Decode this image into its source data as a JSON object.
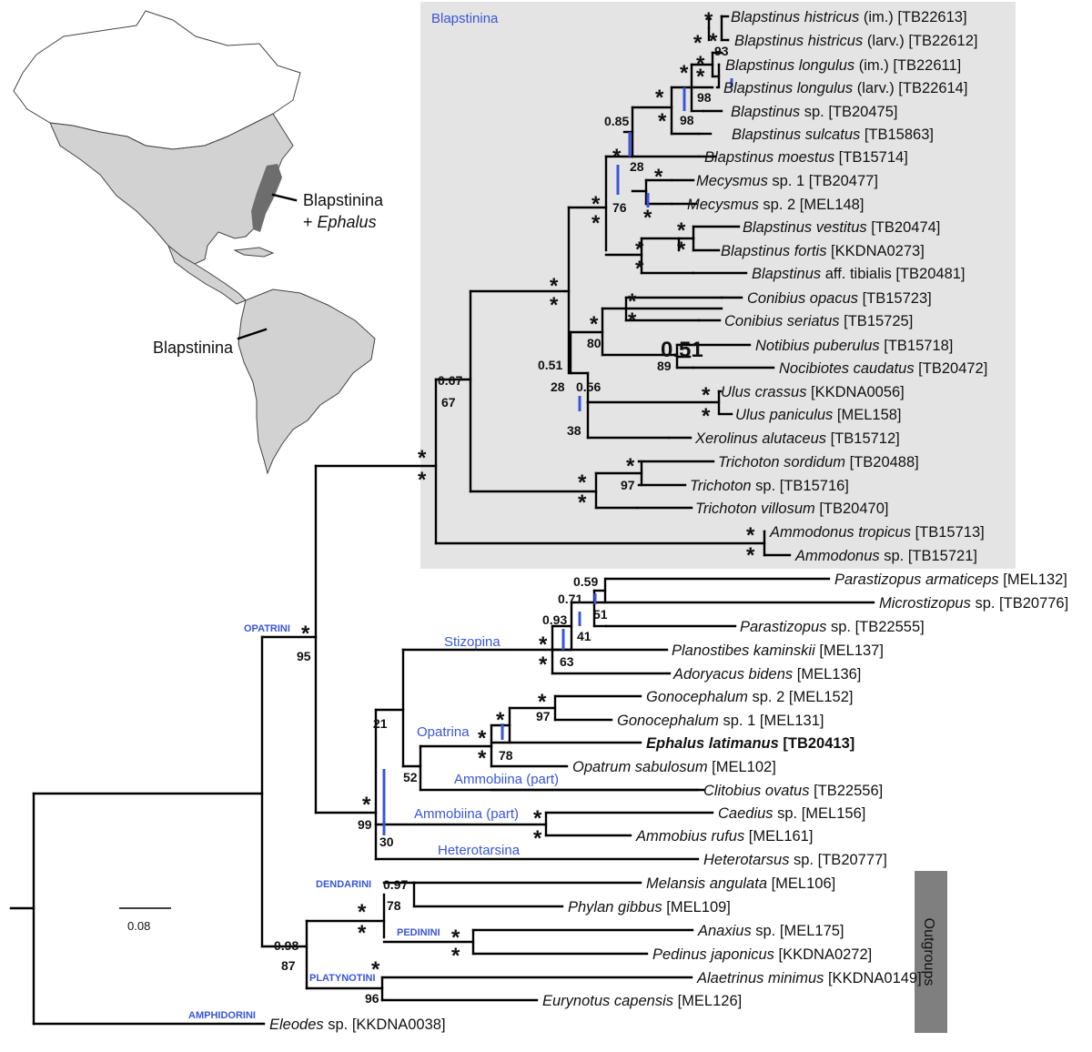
{
  "clade_box_label": "Blapstinina",
  "outgroup_label": "Outgroups",
  "scale_label": "0.08",
  "map_labels": {
    "east": "Blapstinina",
    "east_plus": "+",
    "east_genus": "Ephalus",
    "south": "Blapstinina"
  },
  "colors": {
    "blue": "#3a55d8",
    "box": "#e4e4e4",
    "outgroup_bar": "#7f7f7f",
    "map_land": "#d2d2d2",
    "map_dark": "#6d6d6d"
  },
  "tribes": {
    "opatrini": "OPATRINI",
    "dendarini": "DENDARINI",
    "pedinini": "PEDININI",
    "platynotini": "PLATYNOTINI",
    "amphidorini": "AMPHIDORINI"
  },
  "groups": {
    "stizopina": "Stizopina",
    "opatrina": "Opatrina",
    "ammobiina1": "Ammobiina (part)",
    "ammobiina2": "Ammobiina (part)",
    "heterotarsina": "Heterotarsina"
  },
  "taxa": [
    {
      "sp": "Blapstinus histricus",
      "rest": " (im.) [TB22613]"
    },
    {
      "sp": "Blapstinus histricus",
      "rest": " (larv.) [TB22612]"
    },
    {
      "sp": "Blapstinus longulus",
      "rest": " (im.) [TB22611]"
    },
    {
      "sp": "Blapstinus longulus",
      "rest": " (larv.) [TB22614]"
    },
    {
      "sp": "Blapstinus",
      "rest": " sp. [TB20475]"
    },
    {
      "sp": "Blapstinus sulcatus",
      "rest": " [TB15863]"
    },
    {
      "sp": "Blapstinus moestus",
      "rest": " [TB15714]"
    },
    {
      "sp": "Mecysmus",
      "rest": " sp. 1 [TB20477]"
    },
    {
      "sp": "Mecysmus",
      "rest": " sp. 2 [MEL148]"
    },
    {
      "sp": "Blapstinus vestitus",
      "rest": " [TB20474]"
    },
    {
      "sp": "Blapstinus fortis",
      "rest": " [KKDNA0273]"
    },
    {
      "sp": "Blapstinus",
      "rest": " aff. tibialis [TB20481]"
    },
    {
      "sp": "Conibius opacus",
      "rest": " [TB15723]"
    },
    {
      "sp": "Conibius seriatus",
      "rest": " [TB15725]"
    },
    {
      "sp": "Notibius puberulus",
      "rest": " [TB15718]"
    },
    {
      "sp": "Nocibiotes caudatus",
      "rest": " [TB20472]"
    },
    {
      "sp": "Ulus crassus",
      "rest": " [KKDNA0056]"
    },
    {
      "sp": "Ulus paniculus",
      "rest": " [MEL158]"
    },
    {
      "sp": "Xerolinus alutaceus",
      "rest": " [TB15712]"
    },
    {
      "sp": "Trichoton sordidum",
      "rest": " [TB20488]"
    },
    {
      "sp": "Trichoton",
      "rest": " sp. [TB15716]"
    },
    {
      "sp": "Trichoton villosum",
      "rest": " [TB20470]"
    },
    {
      "sp": "Ammodonus tropicus",
      "rest": " [TB15713]"
    },
    {
      "sp": "Ammodonus",
      "rest": " sp. [TB15721]"
    },
    {
      "sp": "Parastizopus armaticeps",
      "rest": " [MEL132]"
    },
    {
      "sp": "Microstizopus",
      "rest": " sp. [TB20776]"
    },
    {
      "sp": "Parastizopus",
      "rest": " sp. [TB22555]"
    },
    {
      "sp": "Planostibes kaminskii",
      "rest": " [MEL137]"
    },
    {
      "sp": "Adoryacus bidens",
      "rest": " [MEL136]"
    },
    {
      "sp": "Gonocephalum",
      "rest": " sp. 2 [MEL152]"
    },
    {
      "sp": "Gonocephalum",
      "rest": " sp. 1 [MEL131]"
    },
    {
      "sp": "Ephalus latimanus",
      "rest": " [TB20413]",
      "bold": true
    },
    {
      "sp": "Opatrum sabulosum",
      "rest": " [MEL102]"
    },
    {
      "sp": "Clitobius ovatus",
      "rest": " [TB22556]"
    },
    {
      "sp": "Caedius",
      "rest": " sp. [MEL156]"
    },
    {
      "sp": "Ammobius rufus",
      "rest": " [MEL161]"
    },
    {
      "sp": "Heterotarsus",
      "rest": " sp. [TB20777]"
    },
    {
      "sp": "Melansis angulata",
      "rest": " [MEL106]"
    },
    {
      "sp": "Phylan gibbus",
      "rest": " [MEL109]"
    },
    {
      "sp": "Anaxius",
      "rest": " sp. [MEL175]"
    },
    {
      "sp": "Pedinus japonicus",
      "rest": " [KKDNA0272]"
    },
    {
      "sp": "Alaetrinus minimus",
      "rest": " [KKDNA0149]"
    },
    {
      "sp": "Eurynotus capensis",
      "rest": " [MEL126]"
    },
    {
      "sp": "Eleodes",
      "rest": " sp. [KKDNA0038]"
    }
  ],
  "support": {
    "s01": "*",
    "s02": "*",
    "s03": "*",
    "s04": "93",
    "s05": "98",
    "s06": "*",
    "s07": "*",
    "s08": "*",
    "s09": "98",
    "s10": "0.85",
    "s11": "*",
    "s12": "28",
    "s13": "*",
    "s14": "*",
    "s15": "*",
    "s16": "76",
    "s17": "*",
    "s18": "*",
    "s19": "*",
    "s20": "*",
    "s21": "*",
    "s22": "*",
    "s23": "*",
    "s24": "*",
    "s25": "*",
    "s26": "*",
    "s27": "*",
    "s28": "80",
    "s29": "*",
    "s30": "89",
    "s31": "0.51",
    "s32": "28",
    "s33": "0.56",
    "s34": "38",
    "s35": "*",
    "s36": "*",
    "s37": "0.67",
    "s38": "67",
    "s39": "*",
    "s40": "97",
    "s41": "*",
    "s42": "*",
    "s43": "*",
    "s44": "*",
    "s45": "*",
    "s46": "*",
    "s47": "0.59",
    "s48": "51",
    "s49": "0.71",
    "s50": "41",
    "s51": "0.93",
    "s52": "63",
    "s53": "*",
    "s54": "*",
    "s55": "*",
    "s56": "97",
    "s57": "*",
    "s58": "78",
    "s59": "21",
    "s60": "52",
    "s61": "*",
    "s62": "*",
    "s63": "*",
    "s64": "30",
    "s65": "*",
    "s66": "99",
    "s67": "*",
    "s68": "95",
    "s69": "0.97",
    "s70": "78",
    "s71": "*",
    "s72": "*",
    "s73": "*",
    "s74": "*",
    "s75": "*",
    "s76": "96",
    "s77": "0.98",
    "s78": "87"
  }
}
